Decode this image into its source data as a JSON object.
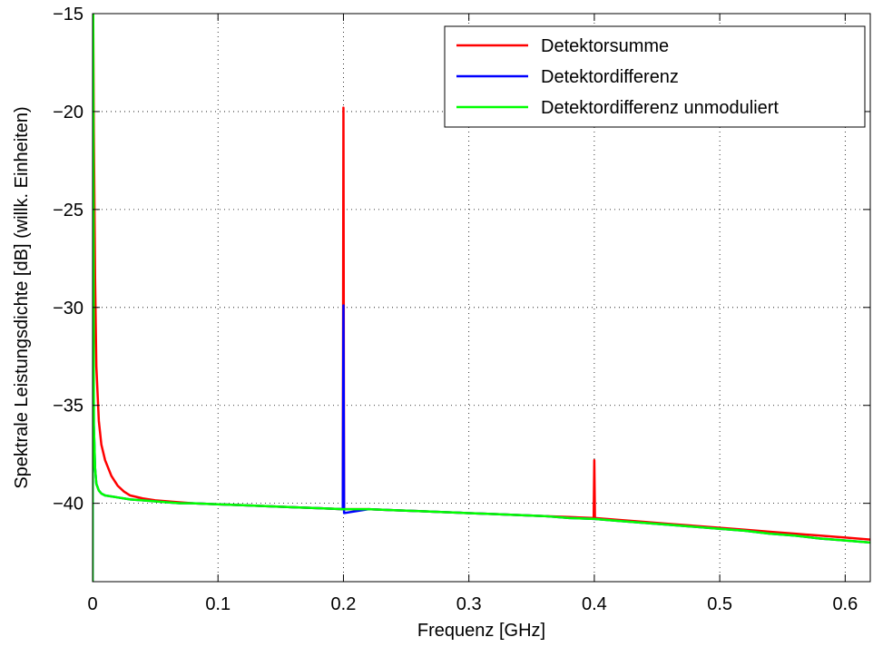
{
  "chart_data": {
    "type": "line",
    "xlabel": "Frequenz [GHz]",
    "ylabel": "Spektrale Leistungsdichte [dB] (willk. Einheiten)",
    "xlim": [
      0,
      0.62
    ],
    "ylim": [
      -44,
      -15
    ],
    "xticks": [
      0,
      0.1,
      0.2,
      0.3,
      0.4,
      0.5,
      0.6
    ],
    "xtick_labels": [
      "0",
      "0.1",
      "0.2",
      "0.3",
      "0.4",
      "0.5",
      "0.6"
    ],
    "yticks": [
      -40,
      -35,
      -30,
      -25,
      -20,
      -15
    ],
    "ytick_labels": [
      "−40",
      "−35",
      "−30",
      "−25",
      "−20",
      "−15"
    ],
    "grid": true,
    "legend_position": "top-right",
    "series": [
      {
        "name": "Detektorsumme",
        "color": "#ff0000",
        "x": [
          0,
          0.0005,
          0.001,
          0.002,
          0.003,
          0.005,
          0.007,
          0.01,
          0.015,
          0.02,
          0.025,
          0.03,
          0.04,
          0.05,
          0.06,
          0.07,
          0.08,
          0.1,
          0.12,
          0.14,
          0.16,
          0.18,
          0.1995,
          0.2,
          0.2005,
          0.22,
          0.24,
          0.26,
          0.28,
          0.3,
          0.32,
          0.34,
          0.36,
          0.38,
          0.3995,
          0.4,
          0.4005,
          0.42,
          0.44,
          0.46,
          0.48,
          0.5,
          0.52,
          0.54,
          0.56,
          0.58,
          0.6,
          0.62
        ],
        "y": [
          -44,
          -15,
          -21,
          -28.5,
          -33,
          -35.8,
          -37,
          -37.8,
          -38.6,
          -39.1,
          -39.4,
          -39.6,
          -39.75,
          -39.85,
          -39.9,
          -39.95,
          -40,
          -40.05,
          -40.1,
          -40.15,
          -40.2,
          -40.25,
          -40.3,
          -19.8,
          -40.3,
          -40.3,
          -40.35,
          -40.4,
          -40.45,
          -40.5,
          -40.55,
          -40.6,
          -40.65,
          -40.7,
          -40.75,
          -37.8,
          -40.75,
          -40.85,
          -40.95,
          -41.05,
          -41.15,
          -41.25,
          -41.35,
          -41.45,
          -41.55,
          -41.65,
          -41.75,
          -41.85
        ]
      },
      {
        "name": "Detektordifferenz",
        "color": "#0000ff",
        "x": [
          0,
          0.0005,
          0.001,
          0.002,
          0.003,
          0.005,
          0.007,
          0.01,
          0.02,
          0.03,
          0.04,
          0.05,
          0.06,
          0.07,
          0.08,
          0.1,
          0.12,
          0.14,
          0.16,
          0.18,
          0.1995,
          0.2,
          0.2005,
          0.22,
          0.24,
          0.26,
          0.28,
          0.3,
          0.32,
          0.34,
          0.36,
          0.38,
          0.4,
          0.42,
          0.44,
          0.46,
          0.48,
          0.5,
          0.52,
          0.54,
          0.56,
          0.58,
          0.6,
          0.62
        ],
        "y": [
          -44,
          -28.6,
          -36,
          -38.2,
          -39,
          -39.35,
          -39.5,
          -39.6,
          -39.7,
          -39.8,
          -39.85,
          -39.9,
          -39.95,
          -40,
          -40,
          -40.05,
          -40.1,
          -40.15,
          -40.2,
          -40.25,
          -40.3,
          -29.9,
          -40.5,
          -40.3,
          -40.35,
          -40.4,
          -40.45,
          -40.5,
          -40.55,
          -40.6,
          -40.65,
          -40.75,
          -40.8,
          -40.9,
          -41,
          -41.1,
          -41.2,
          -41.3,
          -41.4,
          -41.55,
          -41.65,
          -41.8,
          -41.9,
          -42
        ]
      },
      {
        "name": "Detektordifferenz unmoduliert",
        "color": "#00ff00",
        "x": [
          0,
          0.0005,
          0.001,
          0.002,
          0.003,
          0.005,
          0.007,
          0.01,
          0.02,
          0.03,
          0.04,
          0.05,
          0.06,
          0.07,
          0.08,
          0.1,
          0.12,
          0.14,
          0.16,
          0.18,
          0.2,
          0.22,
          0.24,
          0.26,
          0.28,
          0.3,
          0.32,
          0.34,
          0.36,
          0.38,
          0.4,
          0.42,
          0.44,
          0.46,
          0.48,
          0.5,
          0.52,
          0.54,
          0.56,
          0.58,
          0.6,
          0.62
        ],
        "y": [
          -44,
          -15,
          -36,
          -38.2,
          -39,
          -39.35,
          -39.5,
          -39.6,
          -39.7,
          -39.8,
          -39.85,
          -39.9,
          -39.95,
          -40,
          -40,
          -40.05,
          -40.1,
          -40.15,
          -40.2,
          -40.25,
          -40.3,
          -40.3,
          -40.35,
          -40.4,
          -40.45,
          -40.5,
          -40.55,
          -40.6,
          -40.65,
          -40.75,
          -40.8,
          -40.9,
          -41,
          -41.1,
          -41.2,
          -41.3,
          -41.4,
          -41.55,
          -41.65,
          -41.8,
          -41.9,
          -42
        ]
      }
    ]
  }
}
